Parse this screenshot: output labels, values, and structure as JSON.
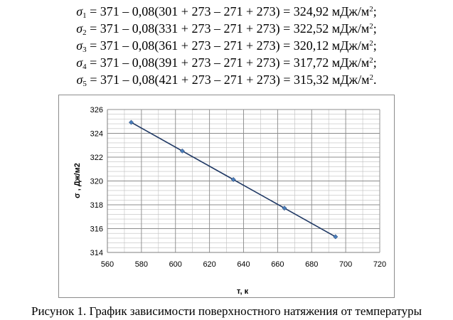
{
  "equations": [
    {
      "symbol": "σ",
      "sub": "1",
      "body": " = 371 – 0,08(301 + 273 – 271 + 273) = 324,92  мДж/м",
      "sup": "2",
      "tail": ";"
    },
    {
      "symbol": "σ",
      "sub": "2",
      "body": " = 371 – 0,08(331 + 273 – 271 + 273) = 322,52  мДж/м",
      "sup": "2",
      "tail": ";"
    },
    {
      "symbol": "σ",
      "sub": "3",
      "body": " = 371 – 0,08(361 + 273 – 271 + 273) = 320,12  мДж/м",
      "sup": "2",
      "tail": ";"
    },
    {
      "symbol": "σ",
      "sub": "4",
      "body": " = 371 – 0,08(391 + 273 – 271 + 273) = 317,72  мДж/м",
      "sup": "2",
      "tail": ";"
    },
    {
      "symbol": "σ",
      "sub": "5",
      "body": " = 371 – 0,08(421 + 273 – 271 + 273) = 315,32  мДж/м",
      "sup": "2",
      "tail": "."
    }
  ],
  "caption": "Рисунок 1. График зависимости поверхностного натяжения от температуры",
  "chart_data": {
    "type": "line",
    "title": "",
    "xlabel": "т, к",
    "ylabel": "σ , Дж/м2",
    "xlim": [
      560,
      720
    ],
    "ylim": [
      314,
      326
    ],
    "x_ticks": [
      560,
      580,
      600,
      620,
      640,
      660,
      680,
      700,
      720
    ],
    "y_ticks": [
      314,
      316,
      318,
      320,
      322,
      324,
      326
    ],
    "grid": true,
    "legend": "none",
    "series": [
      {
        "x": [
          574,
          604,
          634,
          664,
          694
        ],
        "y": [
          324.92,
          322.52,
          320.12,
          317.72,
          315.32
        ],
        "line_color": "#1f3864",
        "marker_color": "#4a7ebb"
      }
    ]
  }
}
